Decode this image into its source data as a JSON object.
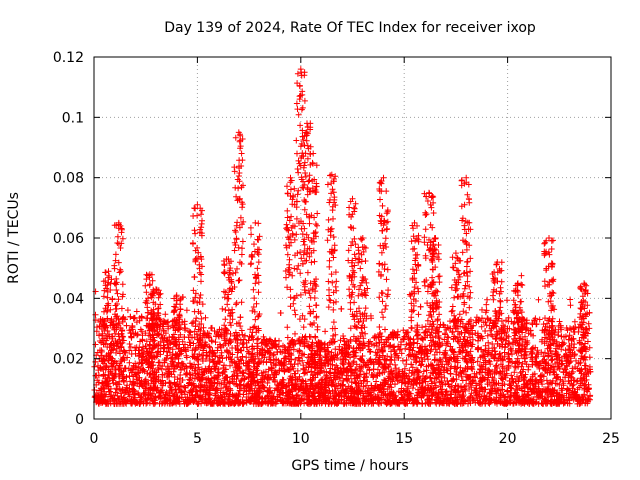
{
  "chart_data": {
    "type": "scatter",
    "title": "Day 139 of 2024, Rate Of TEC Index for receiver ixop",
    "xlabel": "GPS time / hours",
    "ylabel": "ROTI / TECUs",
    "xlim": [
      0,
      25
    ],
    "ylim": [
      0,
      0.12
    ],
    "x_ticks": [
      0,
      5,
      10,
      15,
      20,
      25
    ],
    "x_tick_labels": [
      "0",
      "5",
      "10",
      "15",
      "20",
      "25"
    ],
    "y_ticks": [
      0,
      0.02,
      0.04,
      0.06,
      0.08,
      0.1,
      0.12
    ],
    "y_tick_labels": [
      "0",
      "0.02",
      "0.04",
      "0.06",
      "0.08",
      "0.1",
      "0.12"
    ],
    "grid": true,
    "marker": "+",
    "series_color": "#ff0000",
    "series": [
      {
        "name": "ROTI",
        "x_range": [
          0,
          24
        ],
        "baseline_band": [
          0.005,
          0.03
        ],
        "peaks": [
          {
            "x": 0.7,
            "y": 0.049
          },
          {
            "x": 1.2,
            "y": 0.065
          },
          {
            "x": 2.7,
            "y": 0.048
          },
          {
            "x": 3.0,
            "y": 0.043
          },
          {
            "x": 4.0,
            "y": 0.041
          },
          {
            "x": 5.0,
            "y": 0.071
          },
          {
            "x": 6.5,
            "y": 0.053
          },
          {
            "x": 7.0,
            "y": 0.095
          },
          {
            "x": 7.8,
            "y": 0.065
          },
          {
            "x": 9.5,
            "y": 0.08
          },
          {
            "x": 10.0,
            "y": 0.116
          },
          {
            "x": 10.3,
            "y": 0.098
          },
          {
            "x": 10.6,
            "y": 0.088
          },
          {
            "x": 11.5,
            "y": 0.081
          },
          {
            "x": 12.5,
            "y": 0.073
          },
          {
            "x": 13.0,
            "y": 0.06
          },
          {
            "x": 14.0,
            "y": 0.08
          },
          {
            "x": 15.5,
            "y": 0.065
          },
          {
            "x": 16.2,
            "y": 0.075
          },
          {
            "x": 16.5,
            "y": 0.06
          },
          {
            "x": 17.5,
            "y": 0.055
          },
          {
            "x": 18.0,
            "y": 0.08
          },
          {
            "x": 19.5,
            "y": 0.052
          },
          {
            "x": 20.5,
            "y": 0.045
          },
          {
            "x": 22.0,
            "y": 0.06
          },
          {
            "x": 23.7,
            "y": 0.045
          }
        ]
      }
    ]
  }
}
